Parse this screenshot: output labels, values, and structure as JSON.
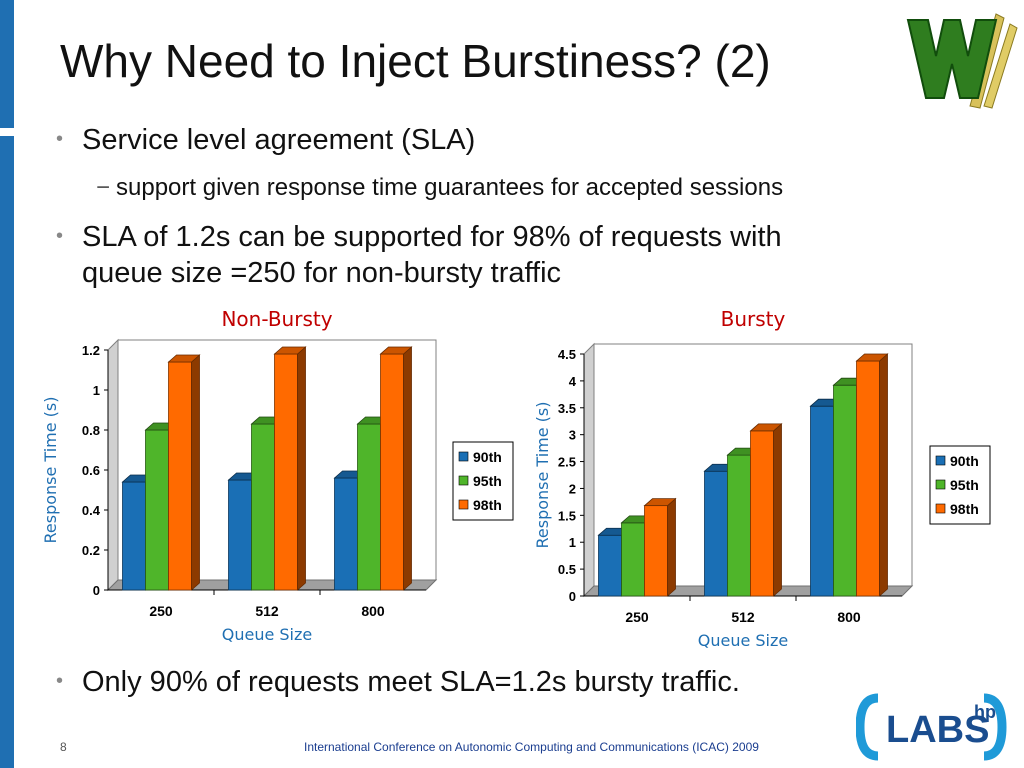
{
  "slide": {
    "title": "Why Need to Inject Burstiness? (2)",
    "bullet1": "Service level agreement (SLA)",
    "bullet1_sub": "support given response time guarantees for accepted sessions",
    "bullet2_line1": "SLA of 1.2s can be supported for 98% of requests with",
    "bullet2_line2": "queue size =250 for non-bursty traffic",
    "bullet3": "Only 90% of requests meet SLA=1.2s bursty traffic.",
    "page_number": "8",
    "footer": "International Conference on Autonomic Computing and Communications (ICAC) 2009",
    "logo_top": "WM",
    "logo_bottom": "LABS",
    "logo_bottom_sup": "hp"
  },
  "colors": {
    "accent_bar": "#1f6fb2",
    "chart_label": "#1f6fb2",
    "chart_title": "#c00000",
    "series_90th": "#1a6fb5",
    "series_95th": "#4fb52a",
    "series_98th": "#ff6a00"
  },
  "chart_data": [
    {
      "type": "bar",
      "title": "Non-Bursty",
      "xlabel": "Queue Size",
      "ylabel": "Response Time (s)",
      "categories": [
        "250",
        "512",
        "800"
      ],
      "ylim": [
        0,
        1.2
      ],
      "yticks": [
        "0",
        "0.2",
        "0.4",
        "0.6",
        "0.8",
        "1",
        "1.2"
      ],
      "grid": false,
      "legend": "right",
      "series": [
        {
          "name": "90th",
          "values": [
            0.54,
            0.55,
            0.56
          ]
        },
        {
          "name": "95th",
          "values": [
            0.8,
            0.83,
            0.83
          ]
        },
        {
          "name": "98th",
          "values": [
            1.14,
            1.18,
            1.18
          ]
        }
      ]
    },
    {
      "type": "bar",
      "title": "Bursty",
      "xlabel": "Queue Size",
      "ylabel": "Response Time (s)",
      "categories": [
        "250",
        "512",
        "800"
      ],
      "ylim": [
        0,
        4.5
      ],
      "yticks": [
        "0",
        "0.5",
        "1",
        "1.5",
        "2",
        "2.5",
        "3",
        "3.5",
        "4",
        "4.5"
      ],
      "grid": false,
      "legend": "right",
      "series": [
        {
          "name": "90th",
          "values": [
            1.13,
            2.32,
            3.53
          ]
        },
        {
          "name": "95th",
          "values": [
            1.36,
            2.62,
            3.92
          ]
        },
        {
          "name": "98th",
          "values": [
            1.68,
            3.07,
            4.37
          ]
        }
      ]
    }
  ]
}
